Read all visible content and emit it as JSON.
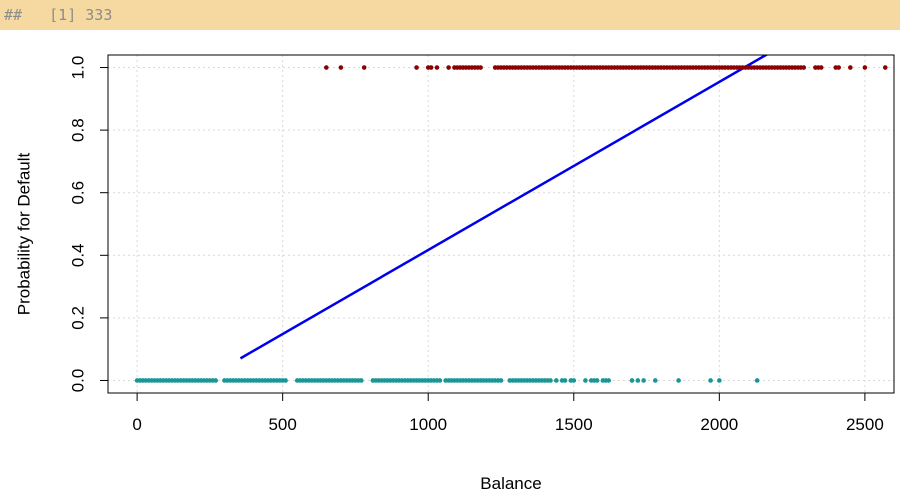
{
  "console": {
    "prompt": "##",
    "output": "[1] 333"
  },
  "chart_data": {
    "type": "scatter",
    "xlabel": "Balance",
    "ylabel": "Probability for Default",
    "xlim": [
      -100,
      2600
    ],
    "ylim": [
      -0.04,
      1.04
    ],
    "xticks": [
      0,
      500,
      1000,
      1500,
      2000,
      2500
    ],
    "yticks": [
      0.0,
      0.2,
      0.4,
      0.6,
      0.8,
      1.0
    ],
    "xtick_labels": [
      "0",
      "500",
      "1000",
      "1500",
      "2000",
      "2500"
    ],
    "ytick_labels": [
      "0.0",
      "0.2",
      "0.4",
      "0.6",
      "0.8",
      "1.0"
    ],
    "grid": true,
    "colors": {
      "no_default": "#1a9696",
      "default": "#8b0000",
      "fit_line": "#0000ee",
      "grid": "#d9d9d9"
    },
    "fit_line": {
      "type": "line",
      "intercept": -0.12,
      "slope": 0.000537,
      "x": [
        355,
        2170
      ]
    },
    "series": [
      {
        "y": 1,
        "x": [
          650,
          700,
          780,
          960,
          1000,
          1010,
          1030,
          1070,
          1090,
          1100,
          1110,
          1120,
          1130,
          1140,
          1150,
          1160,
          1170,
          1180,
          1230,
          1240,
          1250,
          1260,
          1270,
          1280,
          1290,
          1300,
          1310,
          1320,
          1330,
          1340,
          1350,
          1360,
          1370,
          1380,
          1390,
          1400,
          1410,
          1420,
          1430,
          1440,
          1450,
          1460,
          1470,
          1480,
          1490,
          1500,
          1510,
          1520,
          1530,
          1540,
          1550,
          1560,
          1570,
          1580,
          1590,
          1600,
          1610,
          1620,
          1630,
          1640,
          1650,
          1660,
          1670,
          1680,
          1690,
          1700,
          1710,
          1720,
          1730,
          1740,
          1750,
          1760,
          1770,
          1780,
          1790,
          1800,
          1810,
          1820,
          1830,
          1840,
          1850,
          1860,
          1870,
          1880,
          1890,
          1900,
          1910,
          1920,
          1930,
          1940,
          1950,
          1960,
          1970,
          1980,
          1990,
          2000,
          2010,
          2020,
          2030,
          2040,
          2050,
          2060,
          2070,
          2080,
          2090,
          2100,
          2110,
          2120,
          2130,
          2140,
          2150,
          2160,
          2170,
          2180,
          2190,
          2200,
          2210,
          2220,
          2230,
          2240,
          2250,
          2260,
          2270,
          2280,
          2290,
          2330,
          2340,
          2350,
          2400,
          2410,
          2450,
          2500,
          2570
        ]
      },
      {
        "y": 0,
        "x": [
          0,
          10,
          20,
          30,
          40,
          50,
          60,
          70,
          80,
          90,
          100,
          110,
          120,
          130,
          140,
          150,
          160,
          170,
          180,
          190,
          200,
          210,
          220,
          230,
          240,
          250,
          260,
          270,
          300,
          310,
          320,
          330,
          340,
          350,
          360,
          370,
          380,
          390,
          400,
          410,
          420,
          430,
          440,
          450,
          460,
          470,
          480,
          490,
          500,
          510,
          550,
          560,
          570,
          580,
          590,
          600,
          610,
          620,
          630,
          640,
          650,
          660,
          670,
          680,
          690,
          700,
          710,
          720,
          730,
          740,
          750,
          760,
          770,
          810,
          820,
          830,
          840,
          850,
          860,
          870,
          880,
          890,
          900,
          910,
          920,
          930,
          940,
          950,
          960,
          970,
          980,
          990,
          1000,
          1010,
          1020,
          1030,
          1040,
          1060,
          1070,
          1080,
          1090,
          1100,
          1110,
          1120,
          1130,
          1140,
          1150,
          1160,
          1170,
          1180,
          1190,
          1200,
          1210,
          1220,
          1230,
          1240,
          1250,
          1280,
          1290,
          1300,
          1310,
          1320,
          1330,
          1340,
          1350,
          1360,
          1370,
          1380,
          1390,
          1400,
          1410,
          1420,
          1440,
          1460,
          1470,
          1490,
          1500,
          1540,
          1560,
          1570,
          1580,
          1600,
          1610,
          1620,
          1700,
          1720,
          1740,
          1780,
          1860,
          1970,
          2000,
          2130
        ]
      }
    ]
  }
}
